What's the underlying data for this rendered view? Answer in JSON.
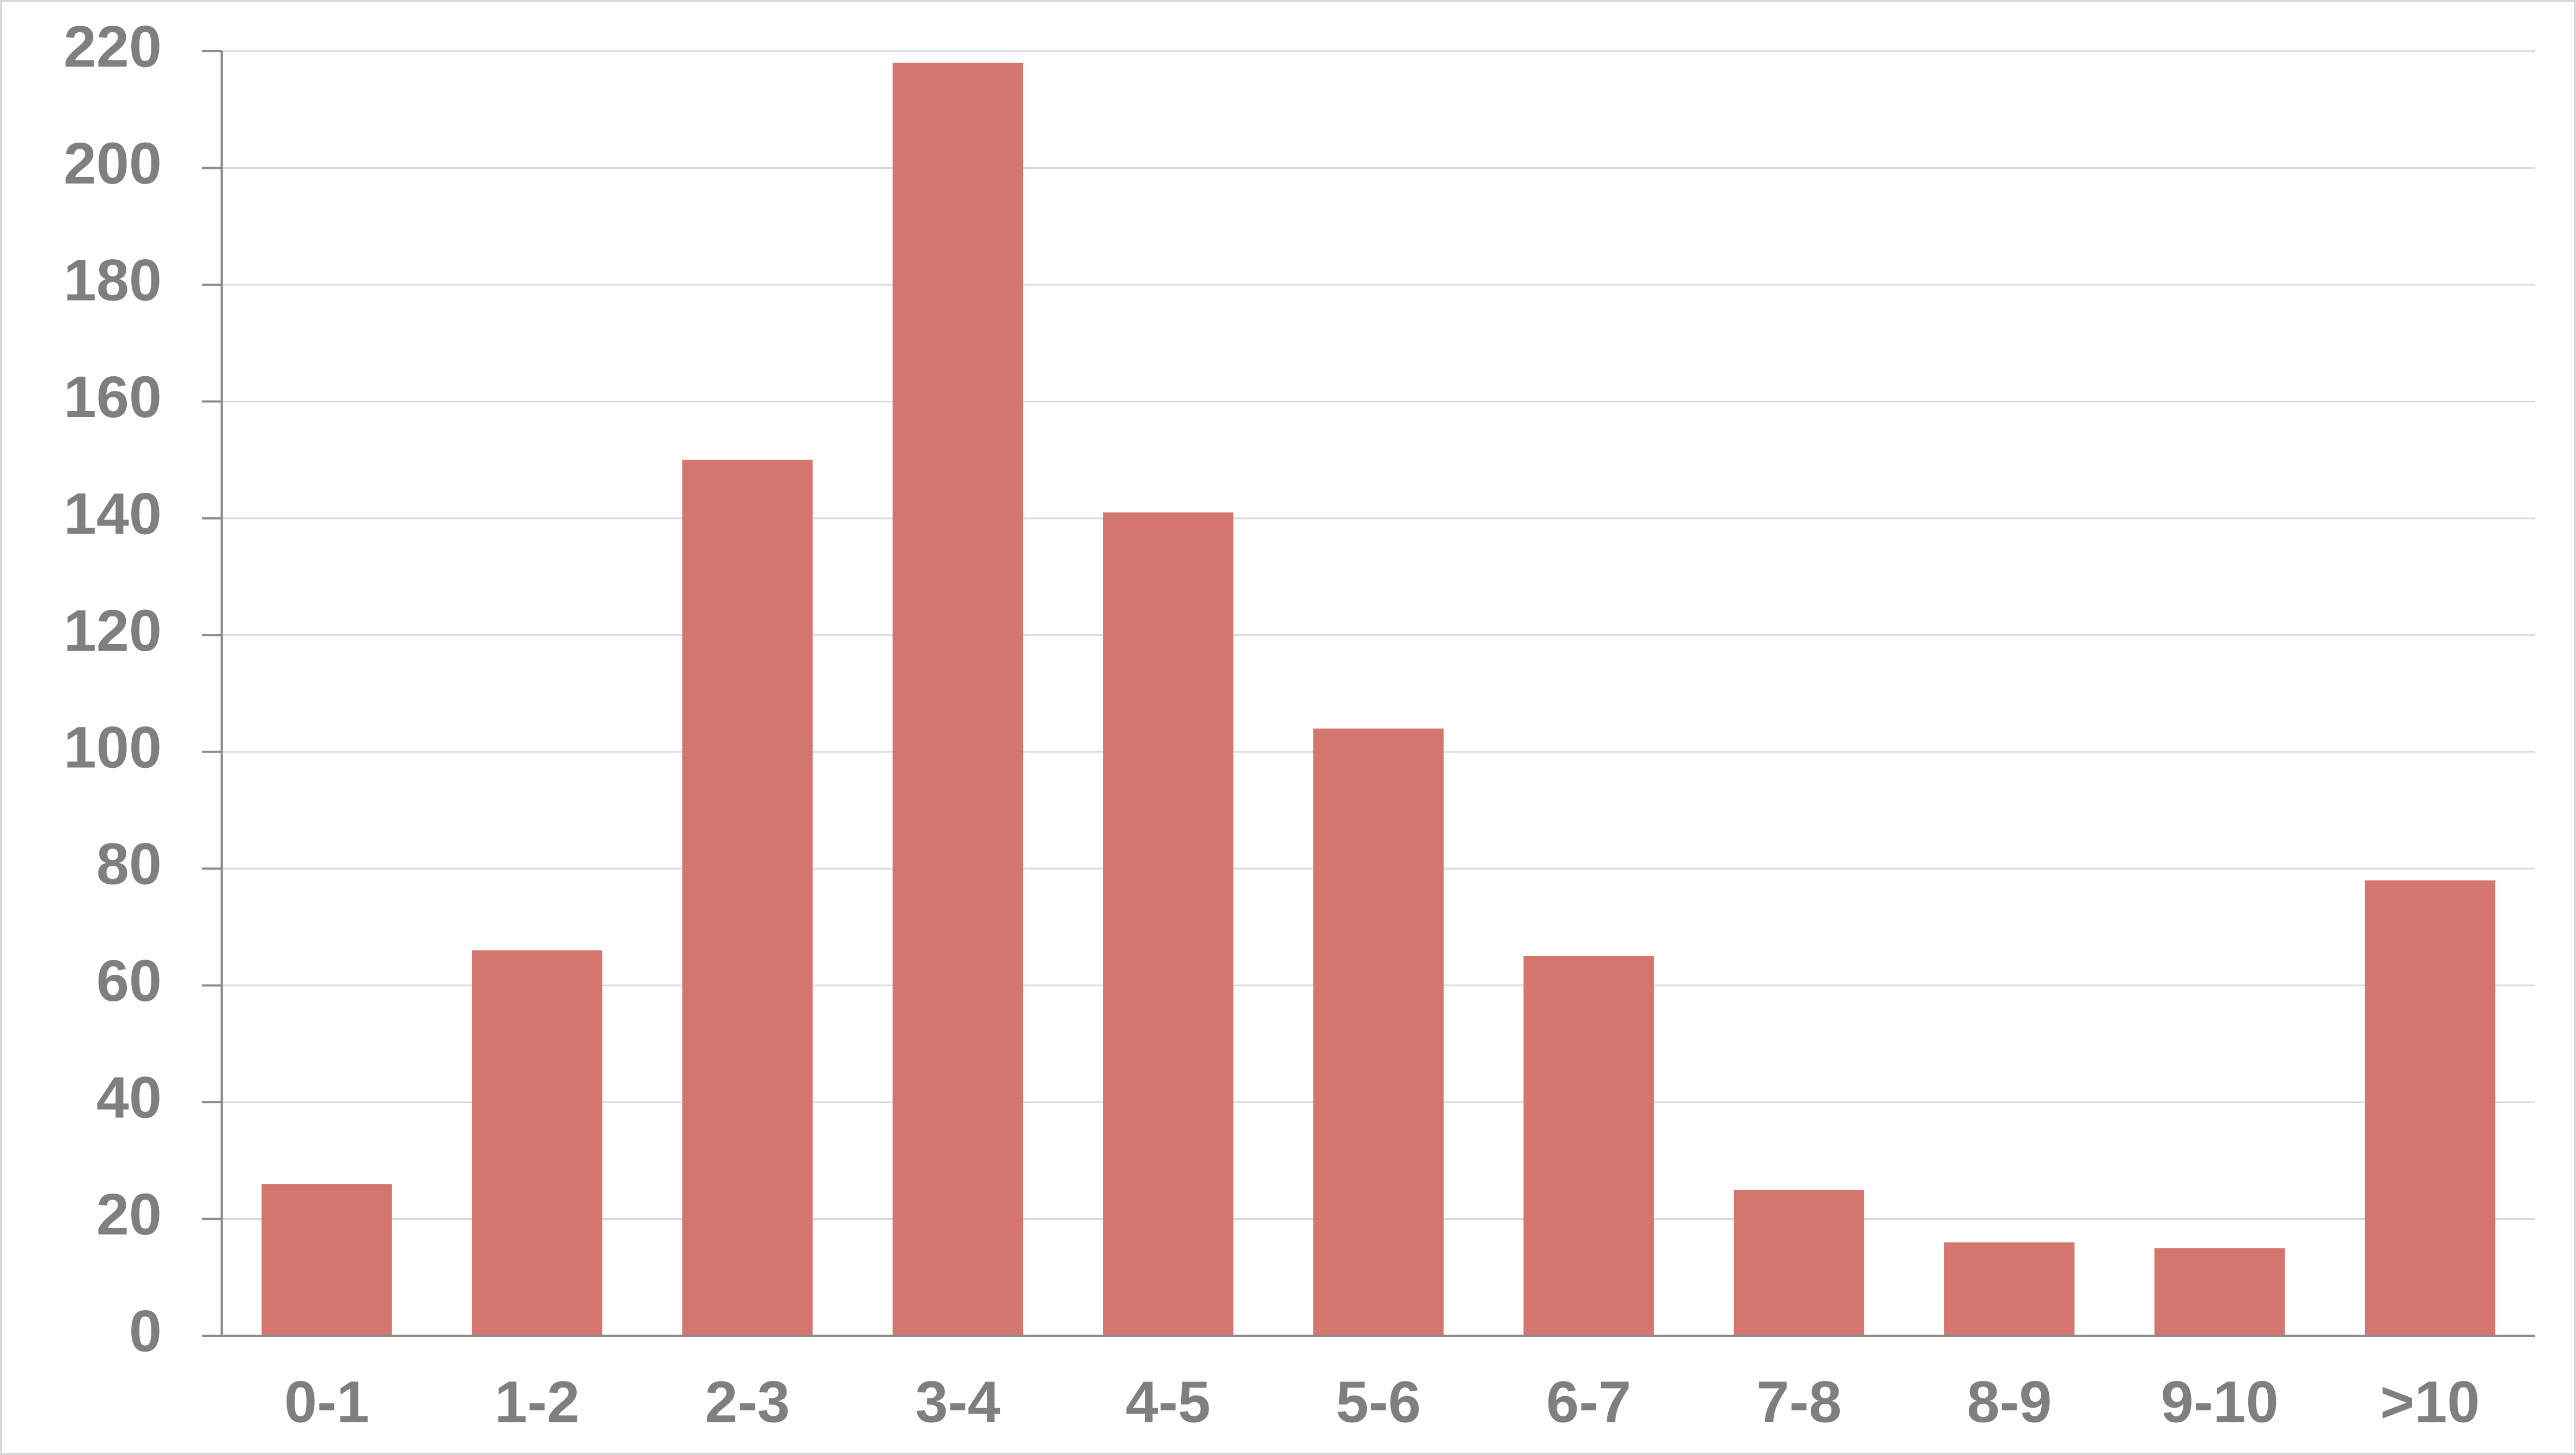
{
  "chart_data": {
    "type": "bar",
    "categories": [
      "0-1",
      "1-2",
      "2-3",
      "3-4",
      "4-5",
      "5-6",
      "6-7",
      "7-8",
      "8-9",
      "9-10",
      ">10"
    ],
    "values": [
      26,
      66,
      150,
      218,
      141,
      104,
      65,
      25,
      16,
      15,
      78
    ],
    "color": "#d4766d",
    "ylim": [
      0,
      220
    ],
    "yticks": [
      0,
      20,
      40,
      60,
      80,
      100,
      120,
      140,
      160,
      180,
      200,
      220
    ],
    "grid": true
  }
}
